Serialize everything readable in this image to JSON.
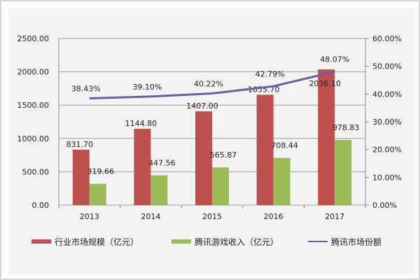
{
  "chart_data": {
    "type": "bar",
    "categories": [
      "2013",
      "2014",
      "2015",
      "2016",
      "2017"
    ],
    "series": [
      {
        "name": "行业市场规模（亿元）",
        "kind": "bar",
        "axis": "left",
        "color": "#c0504d",
        "values": [
          831.7,
          1144.8,
          1407.0,
          1655.7,
          2036.1
        ],
        "labels": [
          "831.70",
          "1144.80",
          "1407.00",
          "1655.70",
          "2036.10"
        ]
      },
      {
        "name": "腾讯游戏收入（亿元）",
        "kind": "bar",
        "axis": "left",
        "color": "#9bbb59",
        "values": [
          319.66,
          447.56,
          565.87,
          708.44,
          978.83
        ],
        "labels": [
          "319.66",
          "447.56",
          "565.87",
          "708.44",
          "978.83"
        ]
      },
      {
        "name": "腾讯市场份额",
        "kind": "line",
        "axis": "right",
        "color": "#6a5fa0",
        "values": [
          38.43,
          39.1,
          40.22,
          42.79,
          48.07
        ],
        "labels": [
          "38.43%",
          "39.10%",
          "40.22%",
          "42.79%",
          "48.07%"
        ]
      }
    ],
    "ylim": [
      0,
      2500
    ],
    "y2lim": [
      0,
      60
    ],
    "yticks": [
      "0.00",
      "500.00",
      "1000.00",
      "1500.00",
      "2000.00",
      "2500.00"
    ],
    "y2ticks": [
      "0.00%",
      "10.00%",
      "20.00%",
      "30.00%",
      "40.00%",
      "50.00%",
      "60.00%"
    ],
    "grid": true,
    "legend": "bottom"
  }
}
